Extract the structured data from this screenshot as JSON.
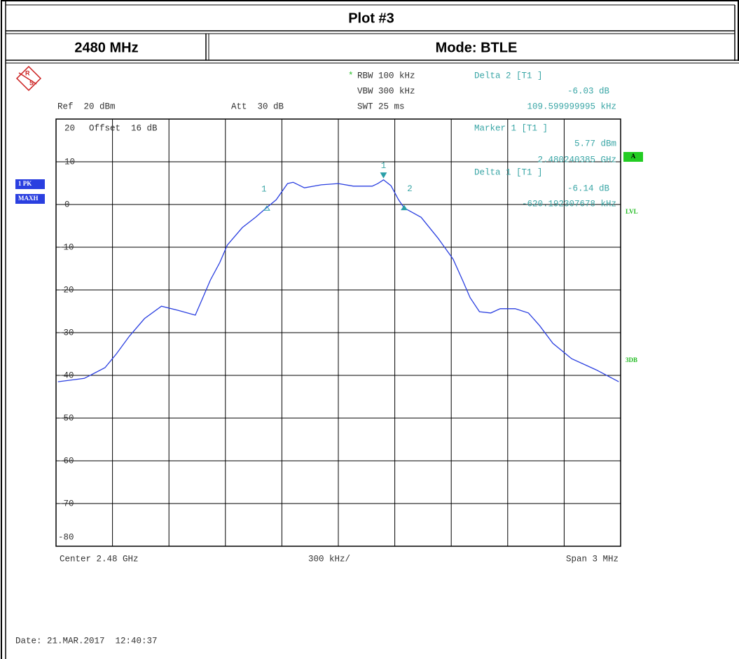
{
  "header": {
    "title": "Plot #3",
    "frequency": "2480 MHz",
    "mode": "Mode: BTLE"
  },
  "chart_data": {
    "type": "line",
    "info": {
      "rbw": "RBW 100 kHz",
      "vbw": "VBW 300 kHz",
      "swt": "SWT 25 ms",
      "ref": "Ref  20 dBm",
      "att": "Att  30 dB",
      "offset": "Offset  16 dB",
      "delta2_title": "Delta 2 [T1 ]",
      "delta2_level": "-6.03 dB",
      "delta2_freq": "109.599999995 kHz",
      "marker1_title": "Marker 1 [T1 ]",
      "marker1_level": "5.77 dBm",
      "marker1_freq": "2.480240385 GHz",
      "delta1_title": "Delta 1 [T1 ]",
      "delta1_level": "-6.14 dB",
      "delta1_freq": "-620.192307678 kHz",
      "center": "Center 2.48 GHz",
      "div": "300 kHz/",
      "span": "Span 3 MHz",
      "trace1": "1 PK",
      "trace2": "MAXH",
      "a": "A",
      "lvl": "LVL",
      "db3": "3DB"
    },
    "date": "Date: 21.MAR.2017  12:40:37",
    "color": "#2a3fe0",
    "xlim": [
      -1.5,
      1.5
    ],
    "ylim": [
      -80,
      20
    ],
    "yticks": [
      -80,
      -70,
      -60,
      -50,
      -40,
      -30,
      -20,
      -10,
      0,
      10,
      20
    ],
    "x": [
      -1.49,
      -1.35,
      -1.24,
      -1.18,
      -1.11,
      -1.03,
      -0.94,
      -0.85,
      -0.76,
      -0.72,
      -0.68,
      -0.63,
      -0.59,
      -0.51,
      -0.44,
      -0.38,
      -0.33,
      -0.27,
      -0.24,
      -0.18,
      -0.09,
      0,
      0.08,
      0.18,
      0.21,
      0.24,
      0.28,
      0.32,
      0.35,
      0.44,
      0.53,
      0.61,
      0.66,
      0.7,
      0.75,
      0.81,
      0.86,
      0.94,
      1.01,
      1.07,
      1.14,
      1.24,
      1.37,
      1.49
    ],
    "values": [
      -41.5,
      -40.7,
      -38.2,
      -35,
      -30.8,
      -26.7,
      -23.8,
      -24.8,
      -25.9,
      -21.8,
      -17.7,
      -13.6,
      -9.5,
      -5.4,
      -3,
      -0.7,
      1.1,
      4.9,
      5.2,
      3.9,
      4.6,
      4.9,
      4.3,
      4.3,
      4.9,
      5.77,
      4.4,
      1.1,
      -0.8,
      -3,
      -7.9,
      -12.8,
      -17.7,
      -21.8,
      -25.1,
      -25.4,
      -24.4,
      -24.4,
      -25.4,
      -28.4,
      -32.5,
      -36.1,
      -38.7,
      -41.5
    ],
    "markers": [
      {
        "label": "1",
        "x": 0.24,
        "y": 5.77
      },
      {
        "label": "1",
        "x": -0.38,
        "y": -0.37
      },
      {
        "label": "2",
        "x": 0.35,
        "y": -0.26
      }
    ]
  }
}
